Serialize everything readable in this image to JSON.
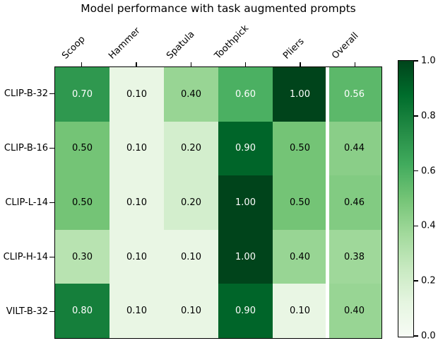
{
  "chart_data": {
    "type": "heatmap",
    "title": "Model performance with task augmented prompts",
    "columns": [
      "Scoop",
      "Hammer",
      "Spatula",
      "Toothpick",
      "Pliers",
      "Overall"
    ],
    "rows": [
      "CLIP-B-32",
      "CLIP-B-16",
      "CLIP-L-14",
      "CLIP-H-14",
      "VILT-B-32"
    ],
    "values": [
      [
        0.7,
        0.1,
        0.4,
        0.6,
        1.0,
        0.56
      ],
      [
        0.5,
        0.1,
        0.2,
        0.9,
        0.5,
        0.44
      ],
      [
        0.5,
        0.1,
        0.2,
        1.0,
        0.5,
        0.46
      ],
      [
        0.3,
        0.1,
        0.1,
        1.0,
        0.4,
        0.38
      ],
      [
        0.8,
        0.1,
        0.1,
        0.9,
        0.1,
        0.4
      ]
    ],
    "value_decimals": 2,
    "separator_before_column": "Overall",
    "colormap": {
      "name": "Greens",
      "stops": [
        "#f7fcf5",
        "#e5f5e0",
        "#c7e9c0",
        "#a1d99b",
        "#74c476",
        "#41ab5d",
        "#238b45",
        "#006d2c",
        "#00441b"
      ]
    },
    "cell_text": {
      "light_threshold": 0.5,
      "dark": "#000000",
      "light": "#ffffff"
    },
    "colorbar": {
      "min": 0.0,
      "max": 1.0,
      "ticks": [
        "0.0",
        "0.2",
        "0.4",
        "0.6",
        "0.8",
        "1.0"
      ],
      "legend_position": "right"
    },
    "axis_color": "#000000",
    "background_color": "#ffffff",
    "grid": false
  }
}
